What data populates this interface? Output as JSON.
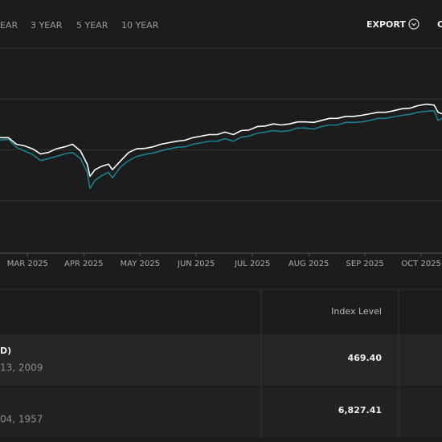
{
  "toolbar": {
    "periods": [
      "EAR",
      "3 YEAR",
      "5 YEAR",
      "10 YEAR"
    ],
    "export": "EXPORT",
    "extra": "C"
  },
  "chart_data": {
    "type": "line",
    "x": [
      -0.49,
      -0.34,
      -0.2,
      -0.06,
      0.09,
      0.23,
      0.37,
      0.51,
      0.66,
      0.8,
      0.94,
      1.06,
      1.11,
      1.2,
      1.3,
      1.44,
      1.51,
      1.66,
      1.8,
      1.94,
      2.09,
      2.23,
      2.37,
      2.51,
      2.66,
      2.8,
      2.94,
      3.09,
      3.23,
      3.37,
      3.51,
      3.66,
      3.8,
      3.94,
      4.09,
      4.23,
      4.37,
      4.51,
      4.66,
      4.8,
      4.94,
      5.09,
      5.23,
      5.37,
      5.51,
      5.66,
      5.8,
      5.94,
      6.09,
      6.23,
      6.37,
      6.51,
      6.66,
      6.8,
      6.94,
      7.09,
      7.23,
      7.3,
      7.37
    ],
    "series": [
      {
        "color": "#1a7f8e",
        "values": [
          1.9,
          2.1,
          0.5,
          -0.2,
          -0.9,
          -2.1,
          -1.7,
          -1.3,
          -0.8,
          -0.5,
          -1.7,
          -4.4,
          -7.6,
          -6.0,
          -5.2,
          -4.4,
          -5.5,
          -3.3,
          -2.1,
          -1.3,
          -0.9,
          -0.6,
          -0.2,
          0.2,
          0.5,
          0.6,
          1.1,
          1.4,
          1.7,
          1.7,
          2.2,
          1.7,
          2.5,
          2.7,
          3.3,
          3.5,
          3.8,
          3.6,
          3.8,
          4.3,
          4.3,
          4.1,
          4.6,
          4.9,
          4.9,
          5.4,
          5.4,
          5.5,
          5.8,
          6.2,
          6.2,
          6.5,
          6.8,
          7.0,
          7.4,
          7.6,
          7.7,
          5.8,
          6.2
        ]
      },
      {
        "color": "#ffffff",
        "values": [
          2.4,
          2.4,
          1.1,
          0.8,
          0.2,
          -0.8,
          -0.5,
          0.2,
          0.6,
          1.1,
          -0.2,
          -2.8,
          -5.2,
          -3.9,
          -3.3,
          -2.8,
          -3.9,
          -2.1,
          -0.5,
          0.2,
          0.3,
          0.6,
          1.1,
          1.4,
          1.7,
          1.9,
          2.4,
          2.7,
          3.0,
          3.0,
          3.5,
          3.0,
          3.8,
          3.9,
          4.6,
          4.7,
          5.1,
          4.9,
          5.1,
          5.5,
          5.5,
          5.4,
          5.8,
          6.2,
          6.2,
          6.6,
          6.6,
          6.8,
          7.1,
          7.4,
          7.4,
          7.7,
          8.1,
          8.2,
          8.7,
          9.0,
          8.8,
          7.4,
          7.1
        ]
      }
    ],
    "xlim": [
      -0.49,
      7.37
    ],
    "xticks": [
      {
        "value": 0,
        "label": "MAR 2025"
      },
      {
        "value": 1,
        "label": "APR 2025"
      },
      {
        "value": 2,
        "label": "MAY 2025"
      },
      {
        "value": 3,
        "label": "JUN 2025"
      },
      {
        "value": 4,
        "label": "JUL 2025"
      },
      {
        "value": 5,
        "label": "AUG 2025"
      },
      {
        "value": 6,
        "label": "SEP 2025"
      },
      {
        "value": 7,
        "label": "OCT 2025"
      }
    ],
    "ylim": [
      -20,
      20
    ],
    "yticks": [
      -10,
      0,
      10,
      20
    ],
    "grid": true
  },
  "table": {
    "columns": [
      "Index Level"
    ],
    "rows": [
      {
        "name": "D)",
        "date": "13, 2009",
        "index_level": "469.40"
      },
      {
        "date": "04, 1957",
        "index_level": "6,827.41"
      }
    ]
  }
}
